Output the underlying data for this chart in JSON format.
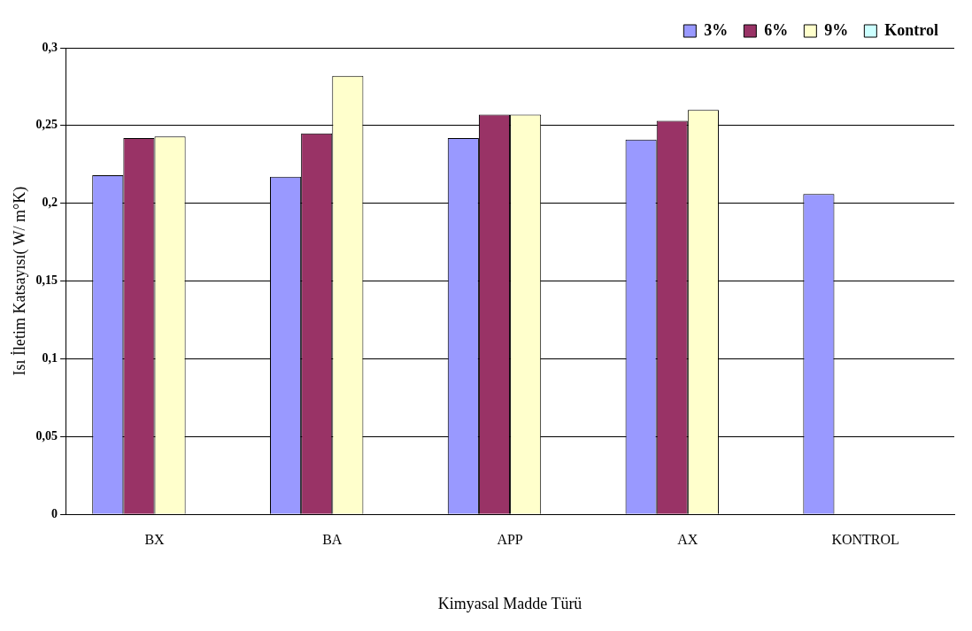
{
  "chart_data": {
    "type": "bar",
    "xlabel": "Kimyasal Madde Türü",
    "ylabel": "Isı İletim Katsayısı( W/ m°K)",
    "categories": [
      "BX",
      "BA",
      "APP",
      "AX",
      "KONTROL"
    ],
    "series": [
      {
        "name": "3%",
        "color": "#9999ff",
        "values": [
          0.218,
          0.217,
          0.242,
          0.241,
          0.206
        ]
      },
      {
        "name": "6%",
        "color": "#993366",
        "values": [
          0.242,
          0.245,
          0.257,
          0.253,
          null
        ]
      },
      {
        "name": "9%",
        "color": "#ffffcc",
        "values": [
          0.243,
          0.282,
          0.257,
          0.26,
          null
        ]
      },
      {
        "name": "Kontrol",
        "color": "#ccffff",
        "values": [
          null,
          null,
          null,
          null,
          null
        ]
      }
    ],
    "ylim": [
      0,
      0.3
    ],
    "yticks": [
      {
        "value": 0,
        "label": "0"
      },
      {
        "value": 0.05,
        "label": "0,05"
      },
      {
        "value": 0.1,
        "label": "0,1"
      },
      {
        "value": 0.15,
        "label": "0,15"
      },
      {
        "value": 0.2,
        "label": "0,2"
      },
      {
        "value": 0.25,
        "label": "0,25"
      },
      {
        "value": 0.3,
        "label": "0,3"
      }
    ],
    "grid": "y",
    "legend": "top right"
  }
}
